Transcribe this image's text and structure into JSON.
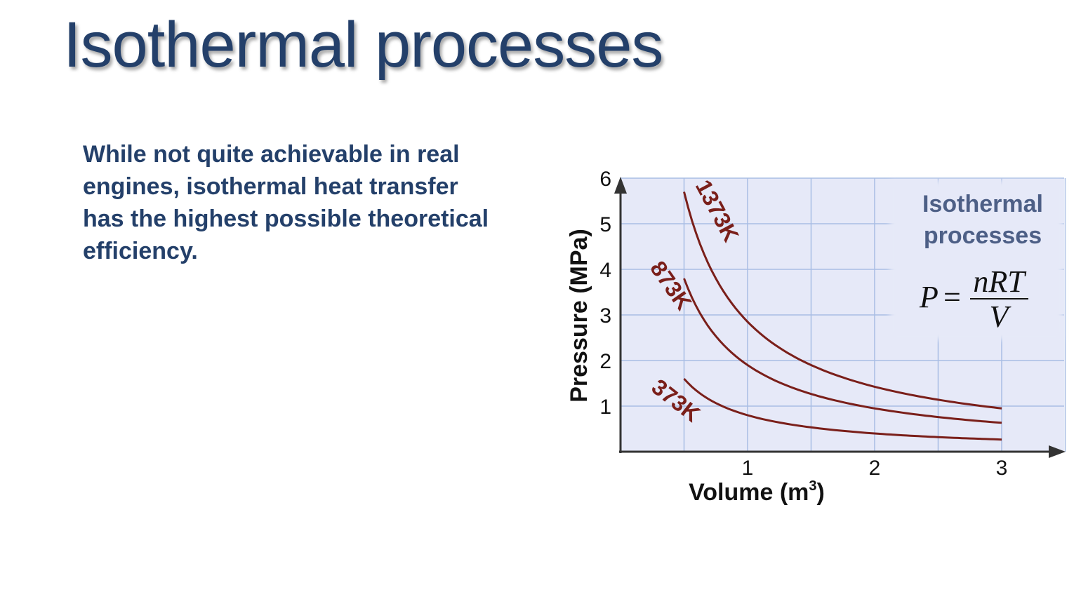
{
  "slide": {
    "title": "Isothermal processes",
    "body": "While not quite achievable in real engines, isothermal heat transfer has the highest possible theoretical efficiency."
  },
  "chart_data": {
    "type": "line",
    "title": "Isothermal processes",
    "xlabel": {
      "main": "Volume",
      "unit": "(m",
      "sup": "3",
      "close": ")"
    },
    "ylabel": {
      "main": "Pressure",
      "unit": "(MPa)"
    },
    "xlim": [
      0,
      3.5
    ],
    "ylim": [
      0,
      6
    ],
    "xticks": [
      1,
      2,
      3
    ],
    "yticks": [
      1,
      2,
      3,
      4,
      5,
      6
    ],
    "grid": true,
    "formula": {
      "lhs": "P",
      "eq": "=",
      "numerator": "nRT",
      "denominator": "V"
    },
    "series": [
      {
        "name": "1373K",
        "color": "#7a1f1a",
        "x": [
          0.5,
          0.75,
          1,
          1.5,
          2,
          2.5,
          3
        ],
        "y": [
          5.7,
          3.8,
          2.85,
          1.9,
          1.43,
          1.14,
          0.95
        ]
      },
      {
        "name": "873K",
        "color": "#7a1f1a",
        "x": [
          0.5,
          0.75,
          1,
          1.5,
          2,
          2.5,
          3
        ],
        "y": [
          3.8,
          2.53,
          1.9,
          1.27,
          0.95,
          0.76,
          0.63
        ]
      },
      {
        "name": "373K",
        "color": "#7a1f1a",
        "x": [
          0.5,
          0.75,
          1,
          1.5,
          2,
          2.5,
          3
        ],
        "y": [
          1.6,
          1.07,
          0.8,
          0.53,
          0.4,
          0.32,
          0.27
        ]
      }
    ]
  },
  "colors": {
    "title": "#24406a",
    "plot_bg": "#e6e9f8",
    "grid": "#a8bde4",
    "curve": "#7a1f1a",
    "inset_title": "#4d5f86"
  }
}
